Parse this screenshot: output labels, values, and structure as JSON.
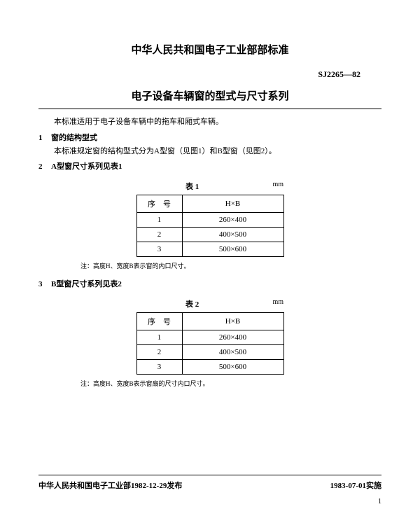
{
  "header": {
    "org_title": "中华人民共和国电子工业部部标准",
    "standard_code": "SJ2265—82",
    "doc_title": "电子设备车辆窗的型式与尺寸系列"
  },
  "intro": "本标准适用于电子设备车辆中的拖车和厢式车辆。",
  "sections": [
    {
      "num": "1",
      "title": "窗的结构型式",
      "body": "本标准规定窗的结构型式分为A型窗（见图1）和B型窗（见图2）。"
    },
    {
      "num": "2",
      "title": "A型窗尺寸系列见表1"
    },
    {
      "num": "3",
      "title": "B型窗尺寸系列见表2"
    }
  ],
  "tables": [
    {
      "caption": "表 1",
      "unit": "mm",
      "columns": [
        "序　号",
        "H×B"
      ],
      "rows": [
        [
          "1",
          "260×400"
        ],
        [
          "2",
          "400×500"
        ],
        [
          "3",
          "500×600"
        ]
      ],
      "note": "注：高度H、宽度B表示窗的内口尺寸。"
    },
    {
      "caption": "表 2",
      "unit": "mm",
      "columns": [
        "序　号",
        "H×B"
      ],
      "rows": [
        [
          "1",
          "260×400"
        ],
        [
          "2",
          "400×500"
        ],
        [
          "3",
          "500×600"
        ]
      ],
      "note": "注：高度H、宽度B表示窗扇的尺寸内口尺寸。"
    }
  ],
  "footer": {
    "issued": "中华人民共和国电子工业部1982-12-29发布",
    "effective": "1983-07-01实施",
    "page": "1"
  },
  "style": {
    "text_color": "#000000",
    "background_color": "#ffffff",
    "border_color": "#000000",
    "title_fontsize": 15,
    "body_fontsize": 11,
    "note_fontsize": 9,
    "table_col_widths": [
      65,
      145
    ]
  }
}
